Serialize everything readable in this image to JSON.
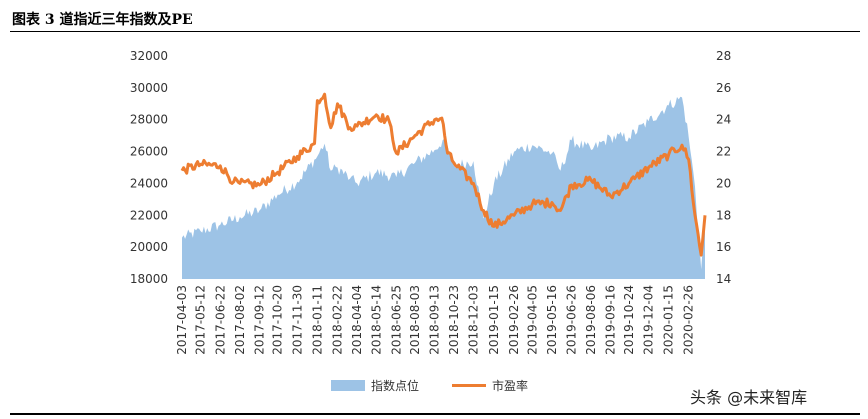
{
  "header": {
    "title": "图表 3 道指近三年指数及PE"
  },
  "watermark": {
    "text": "头条 @未来智库"
  },
  "chart_data": {
    "type": "area",
    "title": "图表 3 道指近三年指数及PE",
    "x_tick_labels": [
      "2017-04-03",
      "2017-05-12",
      "2017-06-22",
      "2017-08-02",
      "2017-09-12",
      "2017-10-20",
      "2017-11-30",
      "2018-01-11",
      "2018-02-22",
      "2018-04-04",
      "2018-05-14",
      "2018-06-25",
      "2018-08-03",
      "2018-09-13",
      "2018-10-23",
      "2018-12-03",
      "2019-01-15",
      "2019-02-26",
      "2019-04-05",
      "2019-05-16",
      "2019-06-26",
      "2019-08-06",
      "2019-09-16",
      "2019-10-24",
      "2019-12-04",
      "2020-01-15",
      "2020-02-26"
    ],
    "left_axis": {
      "min": 18000,
      "max": 32000,
      "step": 2000,
      "ticks": [
        "18000",
        "20000",
        "22000",
        "24000",
        "26000",
        "28000",
        "30000",
        "32000"
      ]
    },
    "right_axis": {
      "min": 14,
      "max": 28,
      "step": 2,
      "ticks": [
        "14",
        "16",
        "18",
        "20",
        "22",
        "24",
        "26",
        "28"
      ]
    },
    "colors": {
      "area": "#9DC3E6",
      "line": "#ED7D31"
    },
    "series": [
      {
        "name": "指数点位",
        "axis": "left",
        "type": "area",
        "x": [
          "2017-04-03",
          "2017-05-12",
          "2017-06-22",
          "2017-08-02",
          "2017-09-12",
          "2017-10-20",
          "2017-11-30",
          "2018-01-11",
          "2018-01-26",
          "2018-02-08",
          "2018-02-22",
          "2018-03-20",
          "2018-04-04",
          "2018-05-14",
          "2018-06-25",
          "2018-08-03",
          "2018-09-13",
          "2018-10-03",
          "2018-10-23",
          "2018-12-03",
          "2018-12-24",
          "2019-01-15",
          "2019-02-26",
          "2019-04-05",
          "2019-05-16",
          "2019-06-03",
          "2019-06-26",
          "2019-08-06",
          "2019-09-16",
          "2019-10-24",
          "2019-12-04",
          "2020-01-15",
          "2020-02-12",
          "2020-02-26",
          "2020-03-10",
          "2020-03-23",
          "2020-03-31"
        ],
        "values": [
          20600,
          21000,
          21400,
          21900,
          22300,
          23300,
          24100,
          25700,
          26500,
          24800,
          25000,
          24300,
          24000,
          24700,
          24400,
          25300,
          26100,
          26800,
          25100,
          25400,
          21800,
          24000,
          26000,
          26400,
          25900,
          24800,
          26700,
          26100,
          26900,
          26900,
          27900,
          28900,
          29400,
          26900,
          23800,
          18600,
          22000
        ]
      },
      {
        "name": "市盈率",
        "axis": "right",
        "type": "line",
        "x": [
          "2017-04-03",
          "2017-05-12",
          "2017-06-22",
          "2017-07-20",
          "2017-08-02",
          "2017-09-12",
          "2017-10-20",
          "2017-11-30",
          "2018-01-05",
          "2018-01-11",
          "2018-01-26",
          "2018-02-08",
          "2018-02-22",
          "2018-03-20",
          "2018-04-04",
          "2018-05-14",
          "2018-06-10",
          "2018-06-25",
          "2018-08-03",
          "2018-09-13",
          "2018-09-28",
          "2018-10-10",
          "2018-10-23",
          "2018-12-03",
          "2018-12-24",
          "2019-01-15",
          "2019-02-26",
          "2019-04-05",
          "2019-05-16",
          "2019-06-03",
          "2019-06-26",
          "2019-08-06",
          "2019-09-16",
          "2019-10-24",
          "2019-11-05",
          "2019-12-04",
          "2020-01-15",
          "2020-02-12",
          "2020-02-26",
          "2020-03-10",
          "2020-03-23",
          "2020-03-31"
        ],
        "values": [
          20.8,
          21.2,
          21.1,
          20.1,
          20.0,
          19.9,
          20.7,
          21.7,
          22.5,
          25.2,
          25.6,
          23.5,
          25.0,
          23.5,
          23.6,
          24.3,
          23.9,
          21.9,
          23.0,
          24.0,
          24.1,
          21.9,
          21.3,
          20.0,
          18.3,
          17.3,
          18.0,
          18.7,
          18.8,
          18.3,
          19.9,
          20.2,
          19.2,
          20.0,
          20.3,
          21.0,
          21.8,
          22.4,
          21.5,
          18.0,
          15.5,
          18.0
        ]
      }
    ],
    "legend": {
      "position": "bottom-center"
    }
  }
}
